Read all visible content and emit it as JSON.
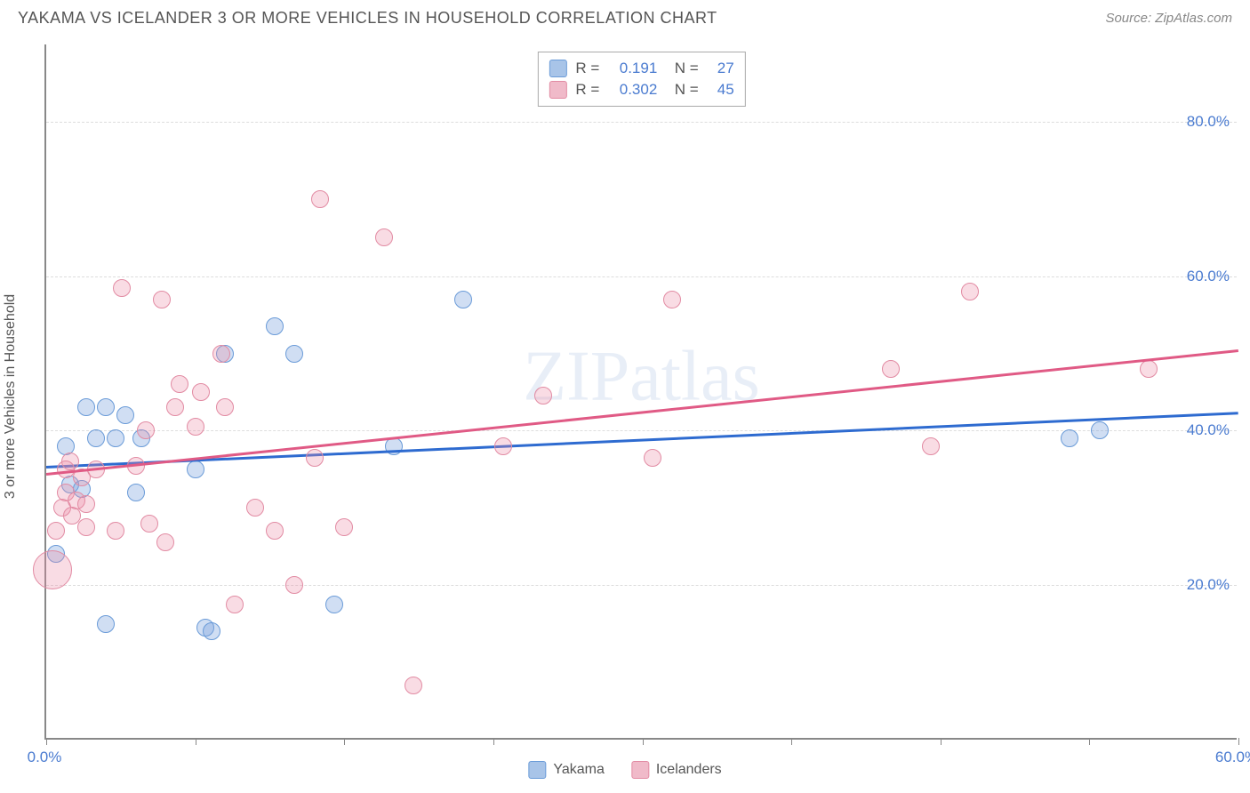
{
  "header": {
    "title": "YAKAMA VS ICELANDER 3 OR MORE VEHICLES IN HOUSEHOLD CORRELATION CHART",
    "source": "Source: ZipAtlas.com"
  },
  "chart": {
    "type": "scatter",
    "watermark": "ZIPatlas",
    "y_axis_label": "3 or more Vehicles in Household",
    "xlim": [
      0,
      60
    ],
    "ylim": [
      0,
      90
    ],
    "x_ticks": [
      0,
      7.5,
      15,
      22.5,
      30,
      37.5,
      45,
      52.5,
      60
    ],
    "x_tick_labels": {
      "0": "0.0%",
      "60": "60.0%"
    },
    "y_ticks": [
      20,
      40,
      60,
      80
    ],
    "y_tick_labels": [
      "20.0%",
      "40.0%",
      "60.0%",
      "80.0%"
    ],
    "grid_color": "#dddddd",
    "axis_color": "#888888",
    "background_color": "#ffffff",
    "series": [
      {
        "name": "Yakama",
        "fill": "rgba(120, 160, 220, 0.35)",
        "stroke": "#6a9bd8",
        "swatch_fill": "#a8c4e8",
        "swatch_stroke": "#6a9bd8",
        "trend_color": "#2e6bd0",
        "R": "0.191",
        "N": "27",
        "trend": {
          "y_at_x0": 35.5,
          "y_at_x60": 42.5
        },
        "points": [
          {
            "x": 0.5,
            "y": 24,
            "r": 10
          },
          {
            "x": 1.0,
            "y": 38,
            "r": 10
          },
          {
            "x": 1.2,
            "y": 33,
            "r": 10
          },
          {
            "x": 1.8,
            "y": 32.5,
            "r": 10
          },
          {
            "x": 2.0,
            "y": 43,
            "r": 10
          },
          {
            "x": 2.5,
            "y": 39,
            "r": 10
          },
          {
            "x": 3.0,
            "y": 15,
            "r": 10
          },
          {
            "x": 3.0,
            "y": 43,
            "r": 10
          },
          {
            "x": 3.5,
            "y": 39,
            "r": 10
          },
          {
            "x": 4.0,
            "y": 42,
            "r": 10
          },
          {
            "x": 4.5,
            "y": 32,
            "r": 10
          },
          {
            "x": 4.8,
            "y": 39,
            "r": 10
          },
          {
            "x": 7.5,
            "y": 35,
            "r": 10
          },
          {
            "x": 8.0,
            "y": 14.5,
            "r": 10
          },
          {
            "x": 8.3,
            "y": 14,
            "r": 10
          },
          {
            "x": 9.0,
            "y": 50,
            "r": 10
          },
          {
            "x": 11.5,
            "y": 53.5,
            "r": 10
          },
          {
            "x": 12.5,
            "y": 50,
            "r": 10
          },
          {
            "x": 14.5,
            "y": 17.5,
            "r": 10
          },
          {
            "x": 17.5,
            "y": 38,
            "r": 10
          },
          {
            "x": 21.0,
            "y": 57,
            "r": 10
          },
          {
            "x": 51.5,
            "y": 39,
            "r": 10
          },
          {
            "x": 53.0,
            "y": 40,
            "r": 10
          }
        ]
      },
      {
        "name": "Icelanders",
        "fill": "rgba(235, 140, 165, 0.3)",
        "stroke": "#e28ba3",
        "swatch_fill": "#f0bac9",
        "swatch_stroke": "#e28ba3",
        "trend_color": "#e05a85",
        "R": "0.302",
        "N": "45",
        "trend": {
          "y_at_x0": 34.5,
          "y_at_x60": 50.5
        },
        "points": [
          {
            "x": 0.3,
            "y": 22,
            "r": 22
          },
          {
            "x": 0.5,
            "y": 27,
            "r": 10
          },
          {
            "x": 0.8,
            "y": 30,
            "r": 10
          },
          {
            "x": 1.0,
            "y": 32,
            "r": 10
          },
          {
            "x": 1.0,
            "y": 35,
            "r": 10
          },
          {
            "x": 1.2,
            "y": 36,
            "r": 10
          },
          {
            "x": 1.3,
            "y": 29,
            "r": 10
          },
          {
            "x": 1.5,
            "y": 31,
            "r": 10
          },
          {
            "x": 1.8,
            "y": 34,
            "r": 10
          },
          {
            "x": 2.0,
            "y": 27.5,
            "r": 10
          },
          {
            "x": 2.0,
            "y": 30.5,
            "r": 10
          },
          {
            "x": 2.5,
            "y": 35,
            "r": 10
          },
          {
            "x": 3.5,
            "y": 27,
            "r": 10
          },
          {
            "x": 3.8,
            "y": 58.5,
            "r": 10
          },
          {
            "x": 4.5,
            "y": 35.5,
            "r": 10
          },
          {
            "x": 5.0,
            "y": 40,
            "r": 10
          },
          {
            "x": 5.2,
            "y": 28,
            "r": 10
          },
          {
            "x": 5.8,
            "y": 57,
            "r": 10
          },
          {
            "x": 6.0,
            "y": 25.5,
            "r": 10
          },
          {
            "x": 6.5,
            "y": 43,
            "r": 10
          },
          {
            "x": 6.7,
            "y": 46,
            "r": 10
          },
          {
            "x": 7.5,
            "y": 40.5,
            "r": 10
          },
          {
            "x": 7.8,
            "y": 45,
            "r": 10
          },
          {
            "x": 8.8,
            "y": 50,
            "r": 10
          },
          {
            "x": 9.0,
            "y": 43,
            "r": 10
          },
          {
            "x": 9.5,
            "y": 17.5,
            "r": 10
          },
          {
            "x": 10.5,
            "y": 30,
            "r": 10
          },
          {
            "x": 11.5,
            "y": 27,
            "r": 10
          },
          {
            "x": 12.5,
            "y": 20,
            "r": 10
          },
          {
            "x": 13.5,
            "y": 36.5,
            "r": 10
          },
          {
            "x": 13.8,
            "y": 70,
            "r": 10
          },
          {
            "x": 15.0,
            "y": 27.5,
            "r": 10
          },
          {
            "x": 17.0,
            "y": 65,
            "r": 10
          },
          {
            "x": 18.5,
            "y": 7,
            "r": 10
          },
          {
            "x": 23.0,
            "y": 38,
            "r": 10
          },
          {
            "x": 25.0,
            "y": 44.5,
            "r": 10
          },
          {
            "x": 30.5,
            "y": 36.5,
            "r": 10
          },
          {
            "x": 31.5,
            "y": 57,
            "r": 10
          },
          {
            "x": 42.5,
            "y": 48,
            "r": 10
          },
          {
            "x": 44.5,
            "y": 38,
            "r": 10
          },
          {
            "x": 46.5,
            "y": 58,
            "r": 10
          },
          {
            "x": 55.5,
            "y": 48,
            "r": 10
          }
        ]
      }
    ]
  }
}
